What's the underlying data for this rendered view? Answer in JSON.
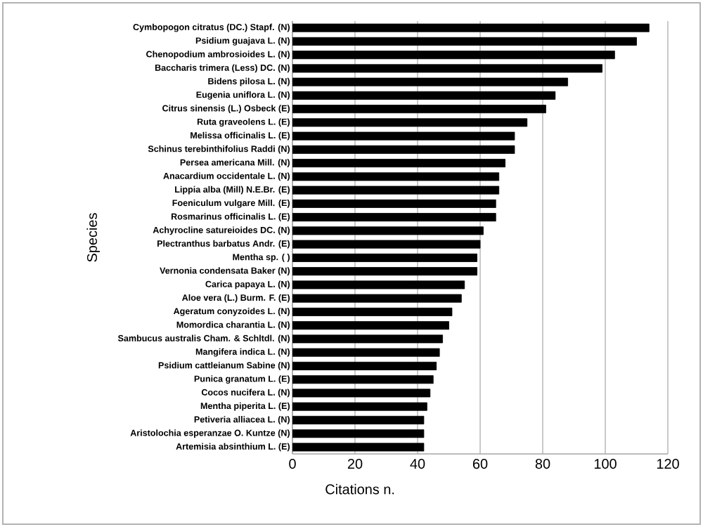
{
  "chart_data": {
    "type": "bar",
    "orientation": "horizontal",
    "xlabel": "Citations  n.",
    "ylabel": "Species",
    "categories": [
      "Cymbopogon citratus (DC.) Stapf. (N)",
      "Psidium guajava L. (N)",
      "Chenopodium ambrosioides L. (N)",
      "Baccharis trimera (Less) DC. (N)",
      "Bidens pilosa L. (N)",
      "Eugenia uniflora L. (N)",
      "Citrus sinensis (L.) Osbeck (E)",
      "Ruta graveolens L. (E)",
      "Melissa officinalis L. (E)",
      "Schinus terebinthifolius Raddi (N)",
      "Persea americana Mill. (N)",
      "Anacardium occidentale L. (N)",
      "Lippia alba (Mill) N.E.Br. (E)",
      "Foeniculum vulgare Mill. (E)",
      "Rosmarinus officinalis L. (E)",
      "Achyrocline satureioides DC. (N)",
      "Plectranthus barbatus Andr. (E)",
      "Mentha sp. ( )",
      "Vernonia condensata Baker (N)",
      "Carica papaya L. (N)",
      "Aloe vera (L.) Burm. F. (E)",
      "Ageratum conyzoides L. (N)",
      "Momordica charantia L. (N)",
      "Sambucus australis Cham. & Schltdl. (N)",
      "Mangifera indica L. (N)",
      "Psidium cattleianum Sabine (N)",
      "Punica granatum L. (E)",
      "Cocos nucifera L. (N)",
      "Mentha piperita L. (E)",
      "Petiveria alliacea L. (N)",
      "Aristolochia esperanzae O. Kuntze (N)",
      "Artemisia absinthium L. (E)"
    ],
    "values": [
      114,
      110,
      103,
      99,
      88,
      84,
      81,
      75,
      71,
      71,
      68,
      66,
      66,
      65,
      65,
      61,
      60,
      59,
      59,
      55,
      54,
      51,
      50,
      48,
      47,
      46,
      45,
      44,
      43,
      42,
      42,
      42
    ],
    "color": "#000000",
    "xlim": [
      0,
      120
    ],
    "xticks": [
      0,
      20,
      40,
      60,
      80,
      100,
      120
    ],
    "grid": "x"
  }
}
